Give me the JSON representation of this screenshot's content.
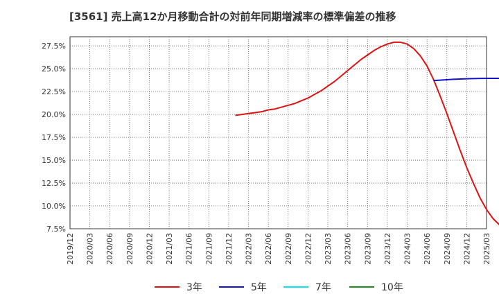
{
  "chart_data": {
    "type": "line",
    "title": "[3561]  売上高12か月移動合計の対前年同期増減率の標準偏差の推移",
    "xlabel": "",
    "ylabel": "",
    "ylim": [
      7.5,
      28.5
    ],
    "yticks": [
      7.5,
      10.0,
      12.5,
      15.0,
      17.5,
      20.0,
      22.5,
      25.0,
      27.5
    ],
    "ytick_labels": [
      "7.5%",
      "10.0%",
      "12.5%",
      "15.0%",
      "17.5%",
      "20.0%",
      "22.5%",
      "25.0%",
      "27.5%"
    ],
    "xticks": [
      "2019/12",
      "2020/03",
      "2020/06",
      "2020/09",
      "2020/12",
      "2021/03",
      "2021/06",
      "2021/09",
      "2021/12",
      "2022/03",
      "2022/06",
      "2022/09",
      "2022/12",
      "2023/03",
      "2023/06",
      "2023/09",
      "2023/12",
      "2024/03",
      "2024/06",
      "2024/09",
      "2024/12",
      "2025/03"
    ],
    "series": [
      {
        "name": "3年",
        "color": "#dd1111",
        "points": [
          [
            "2022/01",
            19.9
          ],
          [
            "2022/02",
            20.0
          ],
          [
            "2022/03",
            20.1
          ],
          [
            "2022/04",
            20.2
          ],
          [
            "2022/05",
            20.3
          ],
          [
            "2022/06",
            20.5
          ],
          [
            "2022/07",
            20.6
          ],
          [
            "2022/08",
            20.8
          ],
          [
            "2022/09",
            21.0
          ],
          [
            "2022/10",
            21.2
          ],
          [
            "2022/11",
            21.5
          ],
          [
            "2022/12",
            21.8
          ],
          [
            "2023/01",
            22.2
          ],
          [
            "2023/02",
            22.6
          ],
          [
            "2023/03",
            23.1
          ],
          [
            "2023/04",
            23.6
          ],
          [
            "2023/05",
            24.2
          ],
          [
            "2023/06",
            24.8
          ],
          [
            "2023/07",
            25.4
          ],
          [
            "2023/08",
            26.0
          ],
          [
            "2023/09",
            26.5
          ],
          [
            "2023/10",
            27.0
          ],
          [
            "2023/11",
            27.4
          ],
          [
            "2023/12",
            27.7
          ],
          [
            "2024/01",
            27.9
          ],
          [
            "2024/02",
            27.9
          ],
          [
            "2024/03",
            27.7
          ],
          [
            "2024/04",
            27.2
          ],
          [
            "2024/05",
            26.4
          ],
          [
            "2024/06",
            25.3
          ],
          [
            "2024/07",
            23.8
          ],
          [
            "2024/08",
            22.0
          ],
          [
            "2024/09",
            20.1
          ],
          [
            "2024/10",
            18.1
          ],
          [
            "2024/11",
            16.1
          ],
          [
            "2024/12",
            14.2
          ],
          [
            "2025/01",
            12.5
          ],
          [
            "2025/02",
            10.9
          ],
          [
            "2025/03",
            9.6
          ],
          [
            "2025/04",
            8.6
          ],
          [
            "2025/05",
            7.9
          ]
        ]
      },
      {
        "name": "5年",
        "color": "#1111cc",
        "points": [
          [
            "2024/07",
            23.7
          ],
          [
            "2024/08",
            23.75
          ],
          [
            "2024/09",
            23.8
          ],
          [
            "2024/10",
            23.85
          ],
          [
            "2024/11",
            23.88
          ],
          [
            "2024/12",
            23.9
          ],
          [
            "2025/01",
            23.92
          ],
          [
            "2025/02",
            23.94
          ],
          [
            "2025/03",
            23.95
          ],
          [
            "2025/04",
            23.95
          ],
          [
            "2025/05",
            23.95
          ]
        ]
      },
      {
        "name": "7年",
        "color": "#00e5ee",
        "points": []
      },
      {
        "name": "10年",
        "color": "#228b22",
        "points": []
      }
    ]
  }
}
